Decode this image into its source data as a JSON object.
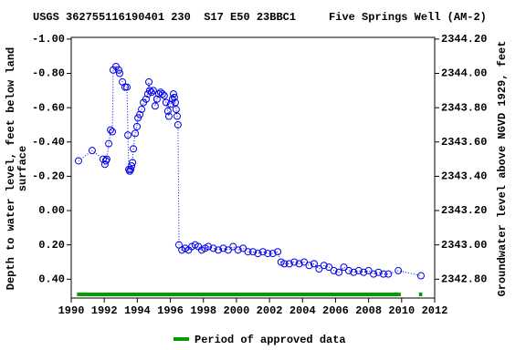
{
  "chart_data": {
    "type": "scatter",
    "title": "USGS 362755116190401 230  S17 E50 23BBC1     Five Springs Well (AM-2)",
    "y_label_lines": [
      "Depth to water level, feet below land",
      "surface"
    ],
    "y2_label": "Groundwater level above NGVD 1929, feet",
    "xlim": [
      1990,
      2012
    ],
    "xticks": [
      1990,
      1992,
      1994,
      1996,
      1998,
      2000,
      2002,
      2004,
      2006,
      2008,
      2010,
      2012
    ],
    "ylim": [
      -1.01,
      0.51
    ],
    "y_inverted": true,
    "yticks": [
      {
        "value": -1.0,
        "label": "-1.00"
      },
      {
        "value": -0.8,
        "label": "-0.80"
      },
      {
        "value": -0.6,
        "label": "-0.60"
      },
      {
        "value": -0.4,
        "label": "-0.40"
      },
      {
        "value": -0.2,
        "label": "-0.20"
      },
      {
        "value": 0,
        "label": "0.00"
      },
      {
        "value": 0.2,
        "label": "0.20"
      },
      {
        "value": 0.4,
        "label": "0.40"
      }
    ],
    "y2lim": [
      2342.69,
      2344.21
    ],
    "y2ticks": [
      {
        "value": 2342.8,
        "label": "2342.80"
      },
      {
        "value": 2343.0,
        "label": "2343.00"
      },
      {
        "value": 2343.2,
        "label": "2343.20"
      },
      {
        "value": 2343.4,
        "label": "2343.40"
      },
      {
        "value": 2343.6,
        "label": "2343.60"
      },
      {
        "value": 2343.8,
        "label": "2343.80"
      },
      {
        "value": 2344.0,
        "label": "2344.00"
      },
      {
        "value": 2344.2,
        "label": "2344.20"
      }
    ],
    "color": "#0000ee",
    "x": [
      1990.44,
      1991.27,
      1991.93,
      1992.04,
      1992.1,
      1992.15,
      1992.27,
      1992.38,
      1992.49,
      1992.54,
      1992.71,
      1992.87,
      1992.93,
      1993.1,
      1993.26,
      1993.37,
      1993.43,
      1993.49,
      1993.54,
      1993.6,
      1993.65,
      1993.71,
      1993.76,
      1993.87,
      1993.98,
      1994.04,
      1994.15,
      1994.26,
      1994.37,
      1994.53,
      1994.64,
      1994.7,
      1994.75,
      1994.86,
      1994.97,
      1995.08,
      1995.19,
      1995.3,
      1995.41,
      1995.52,
      1995.63,
      1995.74,
      1995.85,
      1995.91,
      1996.02,
      1996.13,
      1996.19,
      1996.24,
      1996.3,
      1996.35,
      1996.41,
      1996.46,
      1996.52,
      1996.7,
      1996.9,
      1997.1,
      1997.3,
      1997.5,
      1997.7,
      1997.9,
      1998.1,
      1998.3,
      1998.6,
      1998.9,
      1999.2,
      1999.5,
      1999.8,
      2000.1,
      2000.4,
      2000.7,
      2001.0,
      2001.3,
      2001.6,
      2001.9,
      2002.2,
      2002.5,
      2002.7,
      2002.9,
      2003.2,
      2003.5,
      2003.8,
      2004.1,
      2004.4,
      2004.7,
      2005.0,
      2005.3,
      2005.6,
      2005.9,
      2006.2,
      2006.5,
      2006.8,
      2007.1,
      2007.4,
      2007.7,
      2008.0,
      2008.3,
      2008.6,
      2008.9,
      2009.2,
      2009.8,
      2011.17
    ],
    "values": [
      -0.29,
      -0.35,
      -0.3,
      -0.27,
      -0.29,
      -0.3,
      -0.39,
      -0.47,
      -0.46,
      -0.82,
      -0.84,
      -0.82,
      -0.8,
      -0.75,
      -0.72,
      -0.72,
      -0.44,
      -0.24,
      -0.23,
      -0.24,
      -0.26,
      -0.28,
      -0.36,
      -0.45,
      -0.49,
      -0.54,
      -0.56,
      -0.59,
      -0.63,
      -0.65,
      -0.68,
      -0.75,
      -0.7,
      -0.69,
      -0.7,
      -0.61,
      -0.65,
      -0.68,
      -0.69,
      -0.68,
      -0.67,
      -0.63,
      -0.58,
      -0.55,
      -0.62,
      -0.65,
      -0.68,
      -0.66,
      -0.63,
      -0.59,
      -0.55,
      -0.5,
      0.2,
      0.23,
      0.22,
      0.23,
      0.21,
      0.2,
      0.21,
      0.23,
      0.22,
      0.21,
      0.22,
      0.23,
      0.22,
      0.23,
      0.21,
      0.23,
      0.22,
      0.24,
      0.24,
      0.25,
      0.24,
      0.25,
      0.25,
      0.24,
      0.3,
      0.31,
      0.31,
      0.3,
      0.31,
      0.3,
      0.32,
      0.31,
      0.34,
      0.32,
      0.33,
      0.35,
      0.36,
      0.33,
      0.35,
      0.36,
      0.35,
      0.36,
      0.35,
      0.37,
      0.36,
      0.37,
      0.37,
      0.35,
      0.38
    ],
    "approved_periods": [
      [
        1990.35,
        2009.95
      ],
      [
        2011.05,
        2011.25
      ]
    ],
    "approved_color": "#00a000",
    "legend_label": "Period of approved data"
  }
}
